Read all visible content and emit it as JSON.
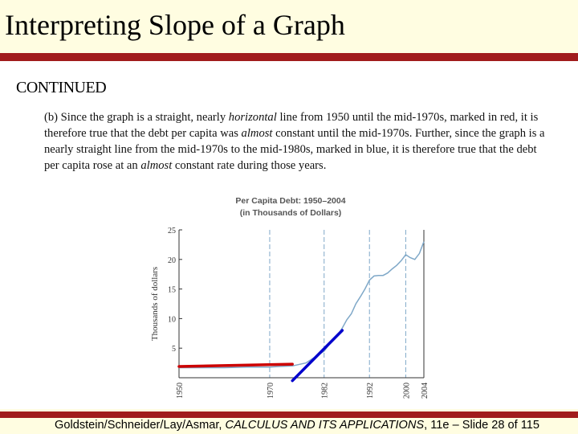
{
  "slide": {
    "title": "Interpreting Slope of a Graph",
    "subheading": "CONTINUED"
  },
  "paragraph": {
    "p1": "(b) Since the graph is a straight, nearly ",
    "e1": "horizontal",
    "p2": " line from 1950 until the mid-1970s, marked in red, it is therefore true that the debt per capita was ",
    "e2": "almost",
    "p3": " constant until the mid-1970s.  Further, since the graph is a nearly straight line from the mid-1970s to the mid-1980s, marked in blue, it is therefore true that the debt per capita rose at an ",
    "e3": "almost",
    "p4": " constant rate during those years."
  },
  "chart_data": {
    "type": "line",
    "title_line1": "Per Capita Debt: 1950–2004",
    "title_line2": "(in Thousands of Dollars)",
    "ylabel": "Thousands of dollars",
    "xlim": [
      1950,
      2004
    ],
    "ylim": [
      0,
      25
    ],
    "y_ticks": [
      "5",
      "10",
      "15",
      "20",
      "25"
    ],
    "x_ticks": [
      "1950",
      "1970",
      "1982",
      "1992",
      "2000",
      "2004"
    ],
    "grid": "vertical dashed lines at 1970, 1982, 1992, 2000",
    "series": [
      {
        "x": [
          1950,
          1955,
          1960,
          1965,
          1970,
          1972,
          1975,
          1978,
          1980,
          1982,
          1984,
          1985,
          1986,
          1987,
          1988,
          1989,
          1990,
          1991,
          1992,
          1993,
          1994,
          1995,
          1996,
          1997,
          1998,
          1999,
          2000,
          2001,
          2002,
          2003,
          2004
        ],
        "y": [
          1.7,
          1.7,
          1.7,
          1.8,
          1.8,
          1.9,
          2.0,
          2.5,
          3.5,
          4.5,
          6.5,
          7.2,
          8.4,
          9.8,
          10.8,
          12.5,
          13.7,
          15.0,
          16.5,
          17.2,
          17.3,
          17.3,
          17.7,
          18.4,
          19.0,
          19.8,
          20.8,
          20.3,
          20.0,
          21.0,
          23.0
        ],
        "color": "#7fa8c8"
      }
    ],
    "highlights": [
      {
        "color": "#cc0000",
        "x": [
          1950,
          1975
        ],
        "y": [
          1.9,
          2.3
        ]
      },
      {
        "color": "#0000cc",
        "x": [
          1975,
          1986
        ],
        "y": [
          -0.5,
          8.0
        ]
      }
    ]
  },
  "footer": {
    "authors": "Goldstein/Schneider/Lay/Asmar, ",
    "book": "CALCULUS AND ITS APPLICATIONS",
    "rest": ", 11e – Slide 28 of 115"
  }
}
